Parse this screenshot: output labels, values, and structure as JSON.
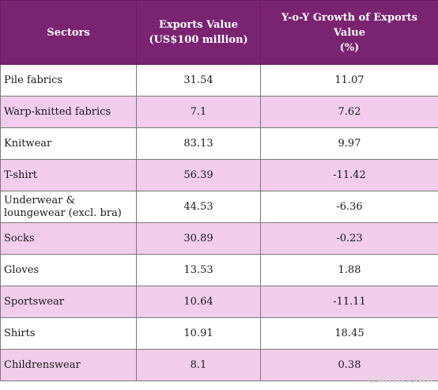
{
  "table": {
    "headers": [
      "Sectors",
      [
        "Exports Value",
        "(US$100 million)"
      ],
      [
        "Y-o-Y Growth of Exports Value",
        "(%)"
      ]
    ],
    "rows": [
      {
        "sector": "Pile fabrics",
        "exports_value": "31.54",
        "yoy_growth": "11.07"
      },
      {
        "sector": "Warp-knitted fabrics",
        "exports_value": "7.1",
        "yoy_growth": "7.62"
      },
      {
        "sector": "Knitwear",
        "exports_value": "83.13",
        "yoy_growth": "9.97"
      },
      {
        "sector": "T-shirt",
        "exports_value": "56.39",
        "yoy_growth": "-11.42"
      },
      {
        "sector": "Underwear & loungewear (excl. bra)",
        "exports_value": "44.53",
        "yoy_growth": "-6.36"
      },
      {
        "sector": "Socks",
        "exports_value": "30.89",
        "yoy_growth": "-0.23"
      },
      {
        "sector": "Gloves",
        "exports_value": "13.53",
        "yoy_growth": "1.88"
      },
      {
        "sector": "Sportswear",
        "exports_value": "10.64",
        "yoy_growth": "-11.11"
      },
      {
        "sector": "Shirts",
        "exports_value": "10.91",
        "yoy_growth": "18.45"
      },
      {
        "sector": "Childrenswear",
        "exports_value": "8.1",
        "yoy_growth": "0.38"
      }
    ],
    "colors": {
      "header_bg": "#7a2471",
      "header_text": "#ffffff",
      "stripe_bg": "#f2cdec",
      "plain_bg": "#ffffff"
    }
  },
  "watermark": "esfirm.com"
}
